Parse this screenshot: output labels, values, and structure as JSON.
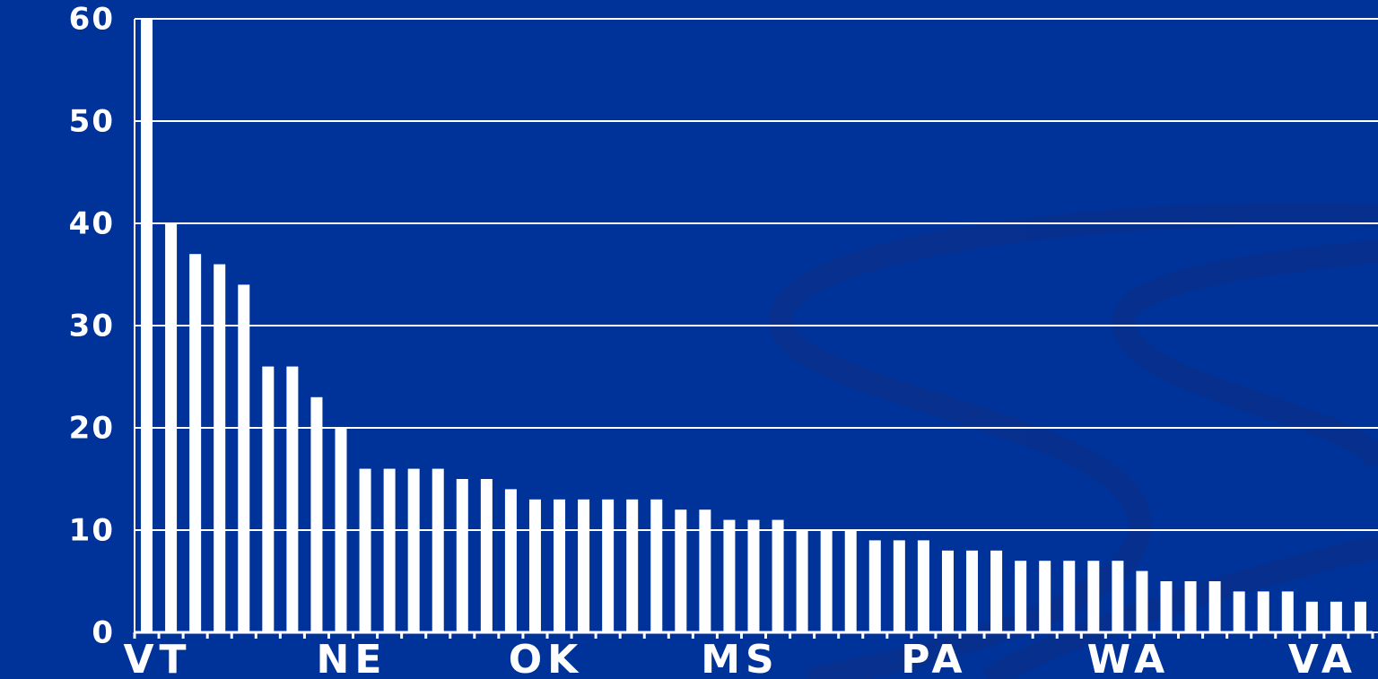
{
  "chart_data": {
    "type": "bar",
    "categories": [
      "VT",
      null,
      null,
      null,
      null,
      null,
      null,
      null,
      "NE",
      null,
      null,
      null,
      null,
      null,
      null,
      null,
      "OK",
      null,
      null,
      null,
      null,
      null,
      null,
      null,
      "MS",
      null,
      null,
      null,
      null,
      null,
      null,
      null,
      "PA",
      null,
      null,
      null,
      null,
      null,
      null,
      null,
      "WA",
      null,
      null,
      null,
      null,
      null,
      null,
      null,
      "VA",
      null,
      null
    ],
    "values": [
      60,
      40,
      37,
      36,
      34,
      26,
      26,
      23,
      20,
      16,
      16,
      16,
      16,
      15,
      15,
      14,
      13,
      13,
      13,
      13,
      13,
      13,
      12,
      12,
      11,
      11,
      11,
      10,
      10,
      10,
      9,
      9,
      9,
      8,
      8,
      8,
      7,
      7,
      7,
      7,
      7,
      6,
      5,
      5,
      5,
      4,
      4,
      4,
      3,
      3,
      3
    ],
    "color": "#ffffff",
    "ylim": [
      0,
      60
    ],
    "yticks": [
      0,
      10,
      20,
      30,
      40,
      50,
      60
    ],
    "grid": true
  }
}
